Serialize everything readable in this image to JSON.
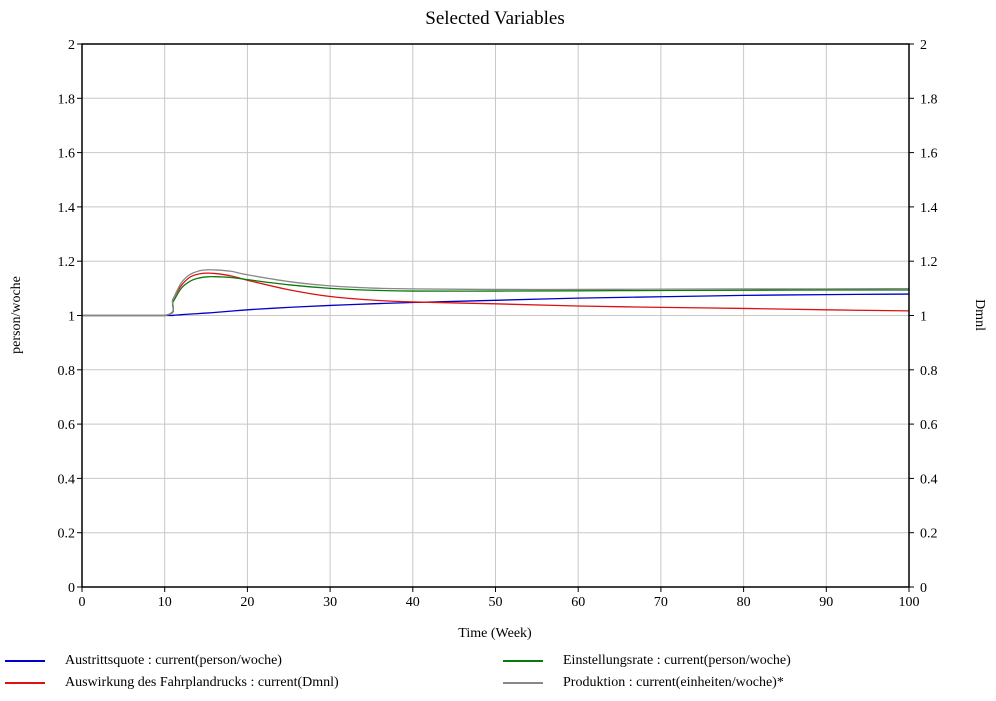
{
  "chart_data": {
    "type": "line",
    "title": "Selected Variables",
    "xlabel": "Time (Week)",
    "ylabel_left": "person/woche",
    "ylabel_right": "Dmnl",
    "xlim": [
      0,
      100
    ],
    "ylim": [
      0,
      2
    ],
    "x_ticks": [
      "0",
      "10",
      "20",
      "30",
      "40",
      "50",
      "60",
      "70",
      "80",
      "90",
      "100"
    ],
    "y_ticks": [
      "0",
      "0.2",
      "0.4",
      "0.6",
      "0.8",
      "1",
      "1.2",
      "1.4",
      "1.6",
      "1.8",
      "2"
    ],
    "grid": true,
    "legend_position": "bottom",
    "x": [
      0,
      10,
      11,
      12,
      13,
      14,
      15,
      16,
      18,
      20,
      25,
      30,
      35,
      40,
      50,
      60,
      70,
      80,
      90,
      100
    ],
    "series": [
      {
        "name": "Austrittsquote : current(person/woche)",
        "color": "#0000cc",
        "values": [
          1.0,
          1.0,
          1.001,
          1.003,
          1.005,
          1.007,
          1.009,
          1.011,
          1.016,
          1.021,
          1.03,
          1.037,
          1.043,
          1.048,
          1.056,
          1.064,
          1.069,
          1.074,
          1.077,
          1.079
        ]
      },
      {
        "name": "Auswirkung des Fahrplandrucks : current(Dmnl)",
        "color": "#dd1111",
        "values": [
          1.0,
          1.0,
          1.06,
          1.11,
          1.14,
          1.152,
          1.156,
          1.155,
          1.146,
          1.13,
          1.095,
          1.07,
          1.057,
          1.05,
          1.043,
          1.035,
          1.03,
          1.026,
          1.021,
          1.017
        ]
      },
      {
        "name": "Einstellungsrate : current(person/woche)",
        "color": "#0a7a0a",
        "values": [
          1.0,
          1.0,
          1.05,
          1.1,
          1.125,
          1.137,
          1.142,
          1.143,
          1.14,
          1.132,
          1.113,
          1.1,
          1.093,
          1.09,
          1.09,
          1.091,
          1.092,
          1.093,
          1.094,
          1.094
        ]
      },
      {
        "name": "Produktion : current(einheiten/woche)*",
        "color": "#888888",
        "values": [
          1.0,
          1.0,
          1.06,
          1.12,
          1.15,
          1.163,
          1.168,
          1.168,
          1.163,
          1.15,
          1.125,
          1.109,
          1.101,
          1.098,
          1.096,
          1.096,
          1.097,
          1.098,
          1.098,
          1.099
        ]
      }
    ]
  }
}
